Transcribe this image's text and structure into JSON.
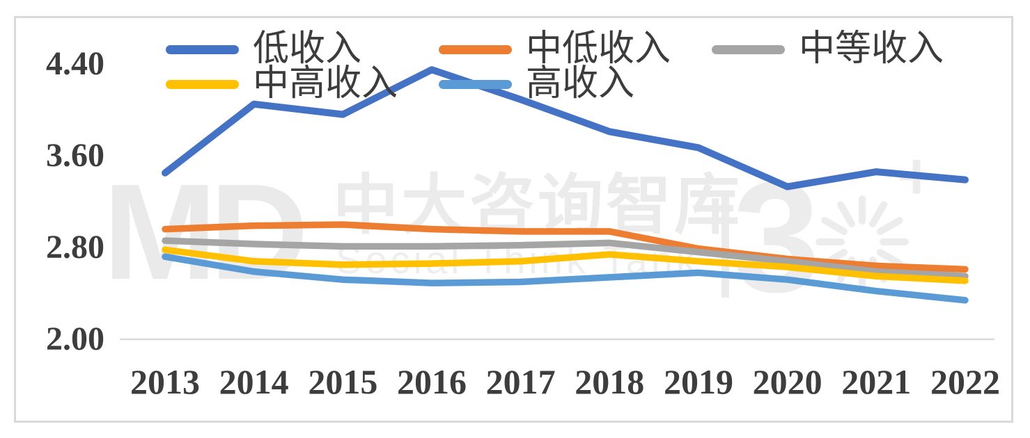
{
  "watermark": {
    "logo": "MD",
    "cn": "中大咨询智库",
    "en": "Social Think Tank",
    "separator": "|",
    "anniversary_numeral": "3",
    "plus": "+"
  },
  "chart_data": {
    "type": "line",
    "title": "",
    "xlabel": "",
    "ylabel": "",
    "x": [
      "2013",
      "2014",
      "2015",
      "2016",
      "2017",
      "2018",
      "2019",
      "2020",
      "2021",
      "2022"
    ],
    "series": [
      {
        "name": "低收入",
        "color": "#4472C4",
        "values": [
          3.45,
          4.05,
          3.96,
          4.35,
          4.09,
          3.81,
          3.67,
          3.33,
          3.46,
          3.39
        ]
      },
      {
        "name": "中低收入",
        "color": "#ED7D31",
        "values": [
          2.96,
          2.99,
          3.0,
          2.96,
          2.94,
          2.94,
          2.79,
          2.7,
          2.64,
          2.61
        ]
      },
      {
        "name": "中等收入",
        "color": "#A5A5A5",
        "values": [
          2.86,
          2.83,
          2.81,
          2.81,
          2.82,
          2.84,
          2.76,
          2.68,
          2.59,
          2.55
        ]
      },
      {
        "name": "中高收入",
        "color": "#FFC000",
        "values": [
          2.78,
          2.68,
          2.65,
          2.66,
          2.68,
          2.74,
          2.68,
          2.63,
          2.55,
          2.51
        ]
      },
      {
        "name": "高收入",
        "color": "#5B9BD5",
        "values": [
          2.72,
          2.59,
          2.52,
          2.49,
          2.5,
          2.54,
          2.58,
          2.52,
          2.42,
          2.34
        ]
      }
    ],
    "y_ticks": [
      "4.40",
      "3.60",
      "2.80",
      "2.00"
    ],
    "y_tick_values": [
      4.4,
      3.6,
      2.8,
      2.0
    ],
    "ylim": [
      2.0,
      4.4
    ],
    "grid": false,
    "baseline_value": "2.00",
    "legend_position": "top, two rows",
    "frame_color": "#d9d9d9",
    "axis_text_color": "#3d3d3d"
  }
}
